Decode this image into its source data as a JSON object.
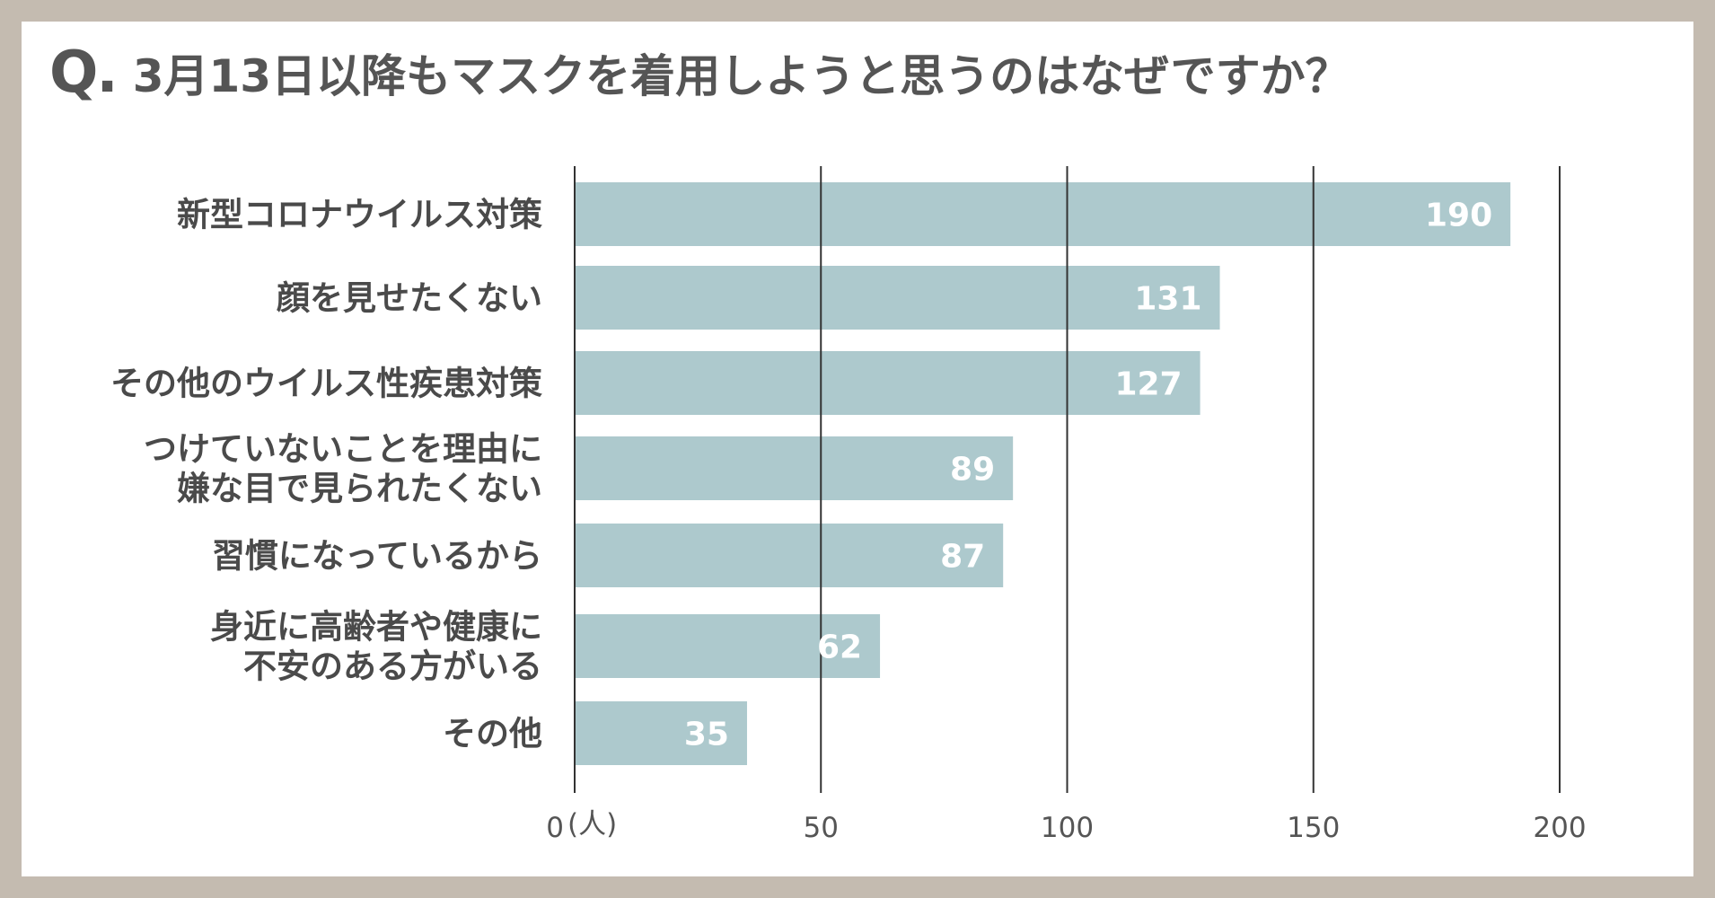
{
  "title": {
    "prefix": "Q.",
    "question": "3月13日以降もマスクを着用しようと思うのはなぜですか？"
  },
  "colors": {
    "frame": "#c4bbb0",
    "bar": "#adc9cd",
    "gridline": "#333333",
    "text": "#4a4a4a"
  },
  "chart_data": {
    "type": "bar",
    "orientation": "horizontal",
    "categories": [
      [
        "新型コロナウイルス対策"
      ],
      [
        "顔を見せたくない"
      ],
      [
        "その他のウイルス性疾患対策"
      ],
      [
        "つけていないことを理由に",
        "嫌な目で見られたくない"
      ],
      [
        "習慣になっているから"
      ],
      [
        "身近に高齢者や健康に",
        "不安のある方がいる"
      ],
      [
        "その他"
      ]
    ],
    "values": [
      190,
      131,
      127,
      89,
      87,
      62,
      35
    ],
    "xlim": [
      0,
      200
    ],
    "ticks": [
      0,
      50,
      100,
      150,
      200
    ],
    "tick_labels": [
      "0",
      "50",
      "100",
      "150",
      "200"
    ],
    "unit": "(人)",
    "grid": true
  }
}
